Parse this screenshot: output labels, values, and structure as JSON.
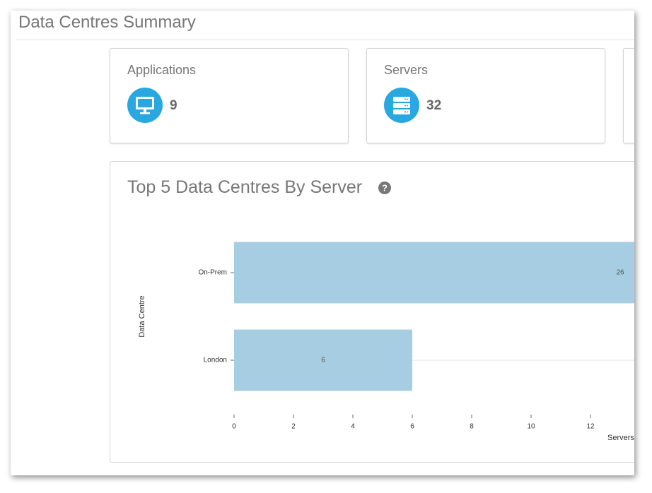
{
  "header": {
    "title": "Data Centres Summary"
  },
  "cards": [
    {
      "label": "Applications",
      "value": 9
    },
    {
      "label": "Servers",
      "value": 32
    }
  ],
  "chart_data": {
    "type": "hbar",
    "title": "Top 5 Data Centres By Server",
    "categories": [
      "On-Prem",
      "London"
    ],
    "values": [
      26,
      6
    ],
    "color": "#a6cde2",
    "xlim": [
      0,
      28
    ],
    "xticks": [
      0,
      2,
      4,
      6,
      8,
      10,
      12
    ],
    "x_label": "Servers",
    "y_label": "Data Centre"
  }
}
